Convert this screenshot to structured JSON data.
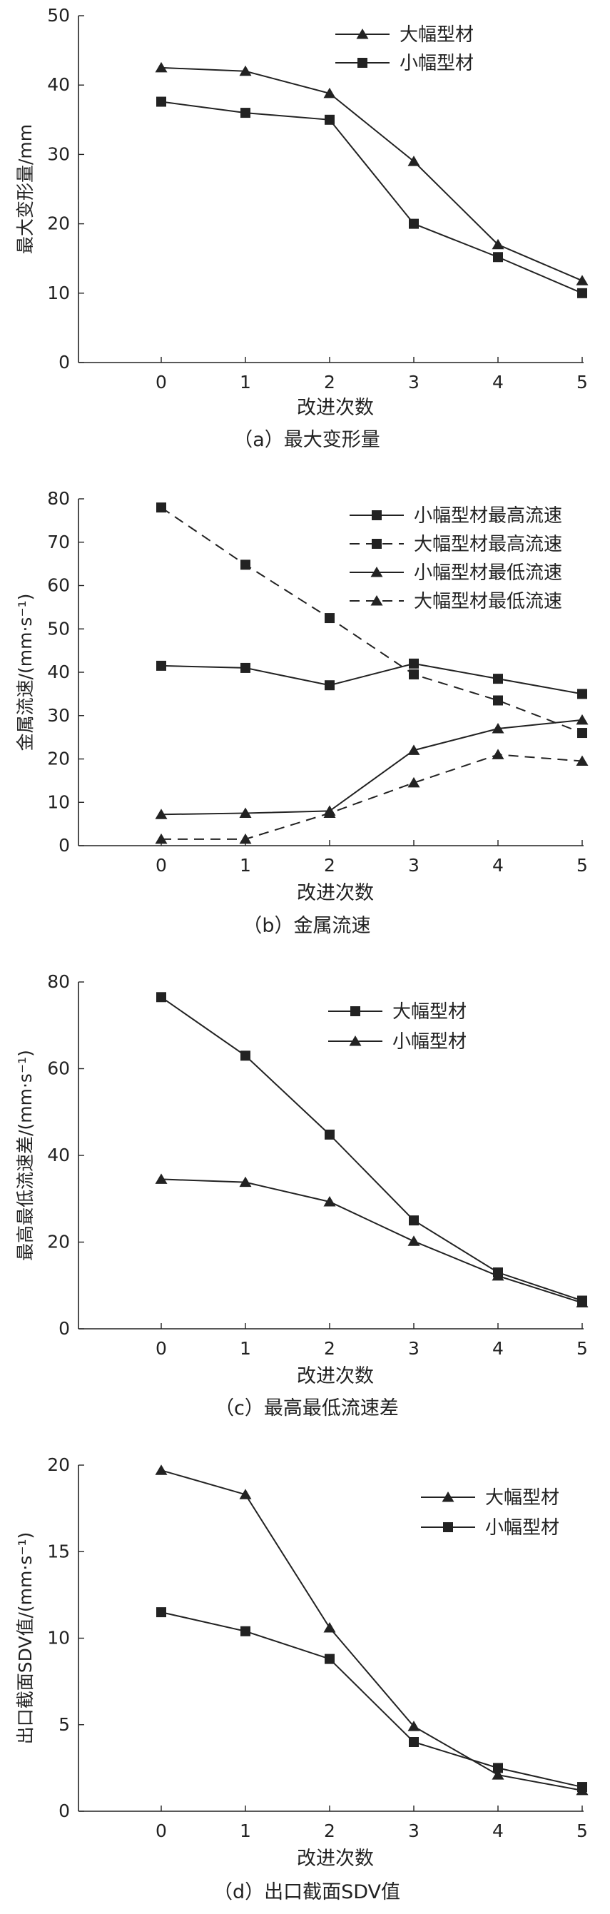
{
  "chart_data": [
    {
      "type": "line",
      "caption": "（a）最大变形量",
      "xlabel": "改进次数",
      "ylabel": "最大变形量/mm",
      "x": [
        0,
        1,
        2,
        3,
        4,
        5
      ],
      "xticks": [
        "0",
        "1",
        "2",
        "3",
        "4",
        "5"
      ],
      "ylim": [
        0,
        50
      ],
      "yticks": [
        0,
        10,
        20,
        30,
        40,
        50
      ],
      "grid": false,
      "legend": "top-right",
      "series": [
        {
          "name": "大幅型材",
          "marker": "triangle",
          "dash": false,
          "values": [
            42.5,
            42,
            38.8,
            29,
            17,
            11.8
          ]
        },
        {
          "name": "小幅型材",
          "marker": "square",
          "dash": false,
          "values": [
            37.6,
            36,
            35,
            20,
            15.2,
            10
          ]
        }
      ]
    },
    {
      "type": "line",
      "caption": "（b）金属流速",
      "xlabel": "改进次数",
      "ylabel": "金属流速/(mm·s⁻¹)",
      "x": [
        0,
        1,
        2,
        3,
        4,
        5
      ],
      "xticks": [
        "0",
        "1",
        "2",
        "3",
        "4",
        "5"
      ],
      "ylim": [
        0,
        80
      ],
      "yticks": [
        0,
        10,
        20,
        30,
        40,
        50,
        60,
        70,
        80
      ],
      "grid": false,
      "legend": "top-right",
      "series": [
        {
          "name": "小幅型材最高流速",
          "marker": "square",
          "dash": false,
          "values": [
            41.5,
            41,
            37,
            42,
            38.5,
            35
          ]
        },
        {
          "name": "大幅型材最高流速",
          "marker": "square",
          "dash": true,
          "values": [
            78,
            64.8,
            52.5,
            39.5,
            33.5,
            26
          ]
        },
        {
          "name": "小幅型材最低流速",
          "marker": "triangle",
          "dash": false,
          "values": [
            7.2,
            7.5,
            8,
            22,
            27,
            29
          ]
        },
        {
          "name": "大幅型材最低流速",
          "marker": "triangle",
          "dash": true,
          "values": [
            1.5,
            1.5,
            7.5,
            14.5,
            21,
            19.5
          ]
        }
      ]
    },
    {
      "type": "line",
      "caption": "（c）最高最低流速差",
      "xlabel": "改进次数",
      "ylabel": "最高最低流速差/(mm·s⁻¹)",
      "x": [
        0,
        1,
        2,
        3,
        4,
        5
      ],
      "xticks": [
        "0",
        "1",
        "2",
        "3",
        "4",
        "5"
      ],
      "ylim": [
        0,
        80
      ],
      "yticks": [
        0,
        20,
        40,
        60,
        80
      ],
      "grid": false,
      "legend": "top-right",
      "series": [
        {
          "name": "大幅型材",
          "marker": "square",
          "dash": false,
          "values": [
            76.5,
            63,
            44.8,
            25,
            13,
            6.5
          ]
        },
        {
          "name": "小幅型材",
          "marker": "triangle",
          "dash": false,
          "values": [
            34.5,
            33.8,
            29.3,
            20.2,
            12.2,
            6
          ]
        }
      ]
    },
    {
      "type": "line",
      "caption": "（d）出口截面SDV值",
      "xlabel": "改进次数",
      "ylabel": "出口截面SDV值/(mm·s⁻¹)",
      "x": [
        0,
        1,
        2,
        3,
        4,
        5
      ],
      "xticks": [
        "0",
        "1",
        "2",
        "3",
        "4",
        "5"
      ],
      "ylim": [
        0,
        20
      ],
      "yticks": [
        0,
        5,
        10,
        15,
        20
      ],
      "grid": false,
      "legend": "top-right",
      "series": [
        {
          "name": "大幅型材",
          "marker": "triangle",
          "dash": false,
          "values": [
            19.7,
            18.3,
            10.6,
            4.9,
            2.1,
            1.2
          ]
        },
        {
          "name": "小幅型材",
          "marker": "square",
          "dash": false,
          "values": [
            11.5,
            10.4,
            8.8,
            4,
            2.5,
            1.4
          ]
        }
      ]
    }
  ]
}
